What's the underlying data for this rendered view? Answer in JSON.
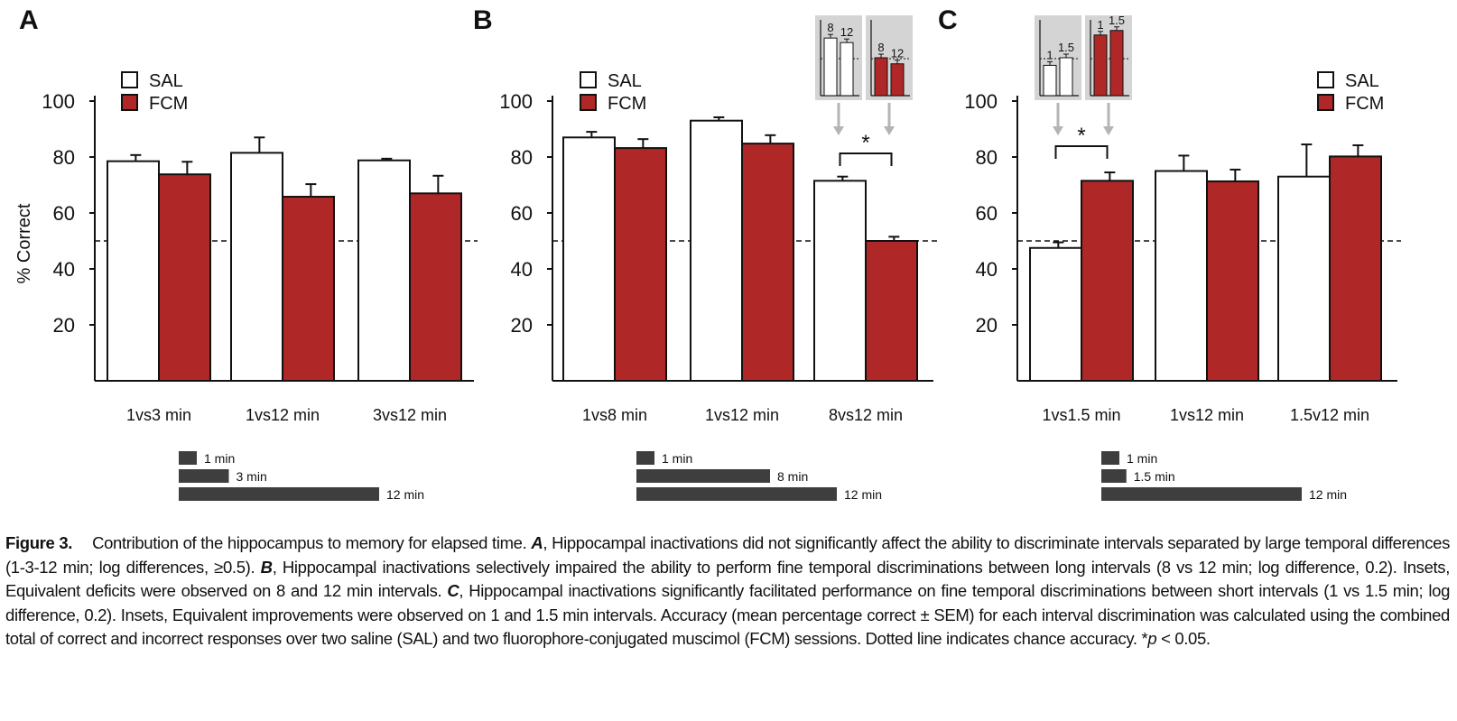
{
  "colors": {
    "sal": "#ffffff",
    "fcm": "#b02727",
    "timebar": "#3e3e3e",
    "inset_bg": "#d4d4d4",
    "arrow": "#b4b4b4"
  },
  "chart_data": [
    {
      "type": "bar",
      "panel": "A",
      "ylabel": "% Correct",
      "yticks": [
        20,
        40,
        60,
        80,
        100
      ],
      "ylim": [
        0,
        100
      ],
      "chance_line": 50,
      "categories": [
        "1vs3 min",
        "1vs12 min",
        "3vs12 min"
      ],
      "series": [
        {
          "name": "SAL",
          "values": [
            78.5,
            81.5,
            78.8
          ],
          "sem": [
            2.2,
            5.5,
            0.6
          ]
        },
        {
          "name": "FCM",
          "values": [
            73.8,
            65.8,
            67.0
          ],
          "sem": [
            4.5,
            4.5,
            6.3
          ]
        }
      ],
      "legend": [
        "SAL",
        "FCM"
      ],
      "legend_position": "top-left",
      "timebars": [
        {
          "label": "1 min",
          "minutes": 1
        },
        {
          "label": "3 min",
          "minutes": 3
        },
        {
          "label": "12 min",
          "minutes": 12
        }
      ]
    },
    {
      "type": "bar",
      "panel": "B",
      "ylabel": "",
      "yticks": [
        20,
        40,
        60,
        80,
        100
      ],
      "ylim": [
        0,
        100
      ],
      "chance_line": 50,
      "categories": [
        "1vs8 min",
        "1vs12 min",
        "8vs12 min"
      ],
      "series": [
        {
          "name": "SAL",
          "values": [
            87.0,
            93.0,
            71.5
          ],
          "sem": [
            2.0,
            1.2,
            1.5
          ]
        },
        {
          "name": "FCM",
          "values": [
            83.2,
            84.8,
            50.0
          ],
          "sem": [
            3.2,
            3.0,
            1.5
          ]
        }
      ],
      "legend": [
        "SAL",
        "FCM"
      ],
      "legend_position": "top-left",
      "significance": {
        "label": "*",
        "category": "8vs12 min"
      },
      "insets": [
        {
          "group": "SAL",
          "labels": [
            "8",
            "12"
          ],
          "values": [
            76,
            70
          ]
        },
        {
          "group": "FCM",
          "labels": [
            "8",
            "12"
          ],
          "values": [
            50,
            42
          ]
        }
      ],
      "timebars": [
        {
          "label": "1 min",
          "minutes": 1
        },
        {
          "label": "8 min",
          "minutes": 8
        },
        {
          "label": "12 min",
          "minutes": 12
        }
      ]
    },
    {
      "type": "bar",
      "panel": "C",
      "ylabel": "",
      "yticks": [
        20,
        40,
        60,
        80,
        100
      ],
      "ylim": [
        0,
        100
      ],
      "chance_line": 50,
      "categories": [
        "1vs1.5 min",
        "1vs12 min",
        "1.5v12 min"
      ],
      "series": [
        {
          "name": "SAL",
          "values": [
            47.5,
            75.0,
            73.0
          ],
          "sem": [
            2.0,
            5.5,
            11.5
          ]
        },
        {
          "name": "FCM",
          "values": [
            71.5,
            71.3,
            80.2
          ],
          "sem": [
            3.0,
            4.2,
            4.0
          ]
        }
      ],
      "legend": [
        "SAL",
        "FCM"
      ],
      "legend_position": "top-right",
      "significance": {
        "label": "*",
        "category": "1vs1.5 min"
      },
      "insets": [
        {
          "group": "SAL",
          "labels": [
            "1",
            "1.5"
          ],
          "values": [
            40,
            50
          ]
        },
        {
          "group": "FCM",
          "labels": [
            "1",
            "1.5"
          ],
          "values": [
            80,
            86
          ]
        }
      ],
      "timebars": [
        {
          "label": "1 min",
          "minutes": 1
        },
        {
          "label": "1.5 min",
          "minutes": 1.5
        },
        {
          "label": "12 min",
          "minutes": 12
        }
      ]
    }
  ],
  "caption": {
    "figure_label": "Figure 3.",
    "intro": "Contribution of the hippocampus to memory for elapsed time. ",
    "a_label": "A",
    "a_text": ", Hippocampal inactivations did not significantly affect the ability to discriminate intervals separated by large temporal differences (1-3-12 min; log differences, ≥0.5). ",
    "b_label": "B",
    "b_text": ", Hippocampal inactivations selectively impaired the ability to perform fine temporal discriminations between long intervals (8 vs 12 min; log difference, 0.2). Insets, Equivalent deficits were observed on 8 and 12 min intervals. ",
    "c_label": "C",
    "c_text": ", Hippocampal inactivations significantly facilitated performance on fine temporal discriminations between short intervals (1 vs 1.5 min; log difference, 0.2). Insets, Equivalent improvements were observed on 1 and 1.5 min intervals. Accuracy (mean percentage correct ± SEM) for each interval discrimination was calculated using the combined total of correct and incorrect responses over two saline (SAL) and two fluorophore-conjugated muscimol (FCM) sessions. Dotted line indicates chance accuracy. *",
    "p_symbol": "p",
    "p_text": " < 0.05."
  }
}
